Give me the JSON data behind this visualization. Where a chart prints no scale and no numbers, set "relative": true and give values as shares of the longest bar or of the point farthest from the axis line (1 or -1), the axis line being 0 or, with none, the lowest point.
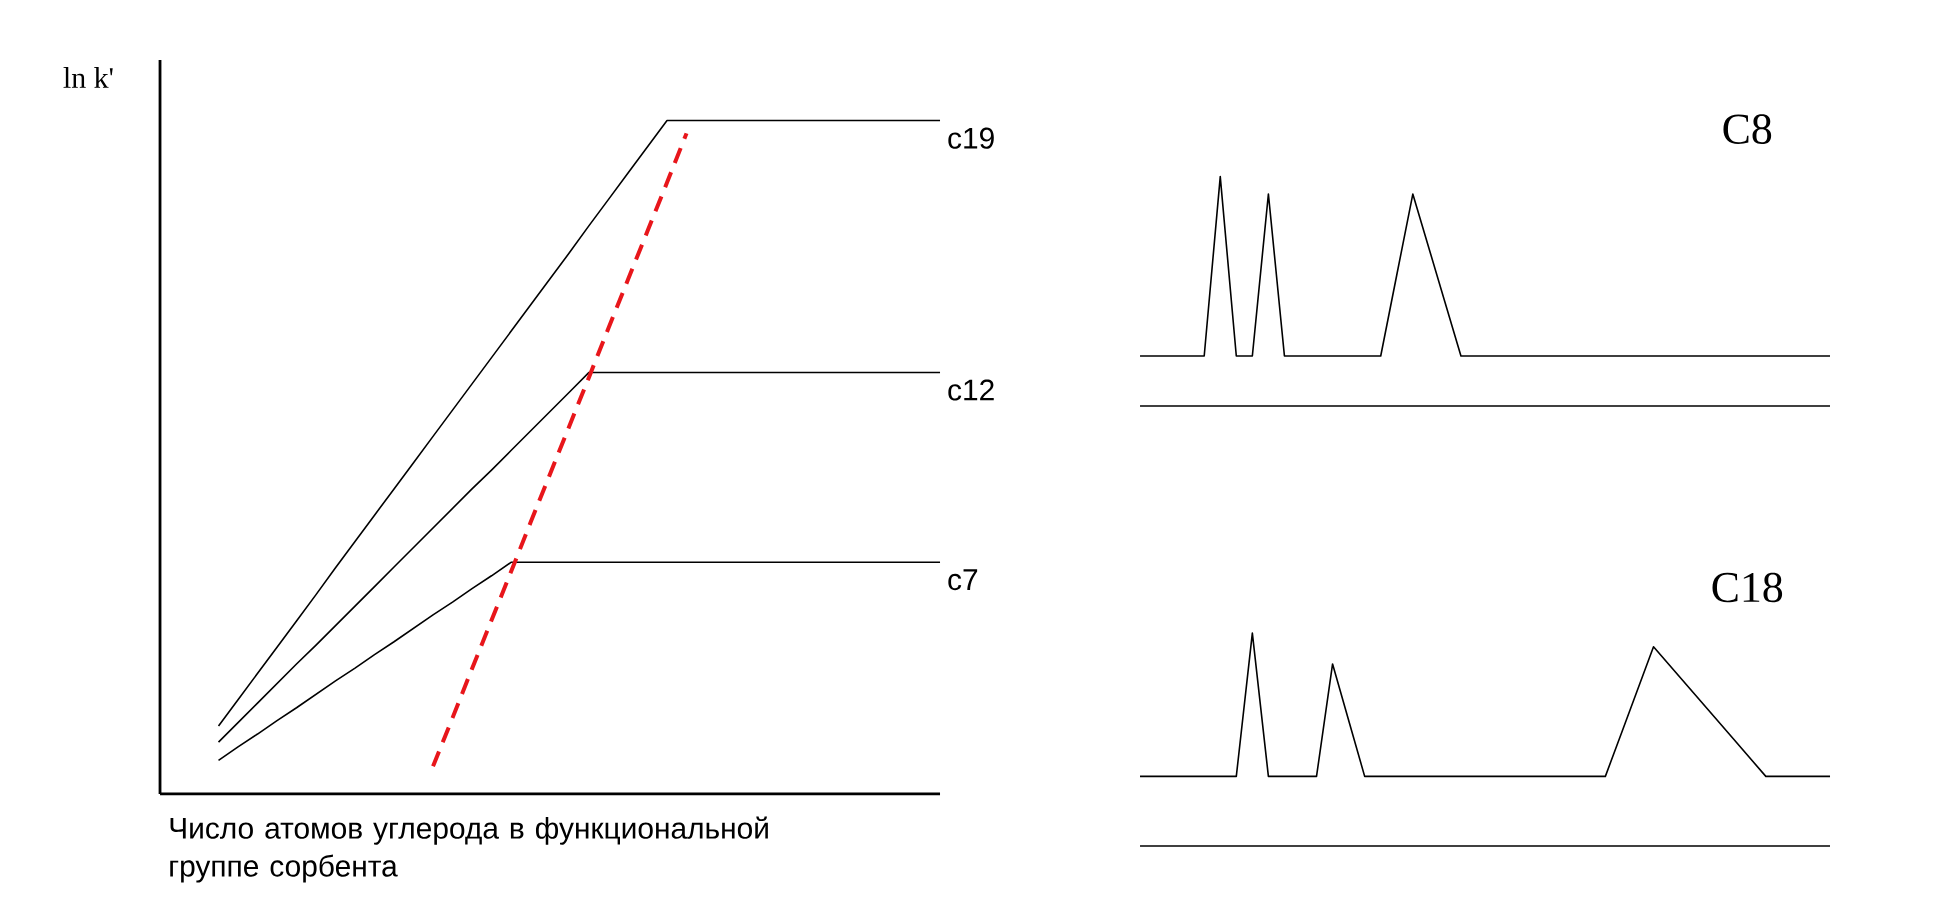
{
  "chart_data": [
    {
      "type": "line",
      "relative": true,
      "ylabel": "ln k'",
      "xlabel": "Число атомов углерода в функциональной группе сорбента",
      "tick_labels": false,
      "line_style": "solid",
      "categories": [
        null,
        null,
        null,
        null,
        null,
        null,
        null,
        null,
        null,
        null,
        null,
        null,
        null,
        null,
        null,
        null,
        null,
        null,
        null,
        null,
        null,
        null,
        null,
        null,
        null,
        null,
        null,
        null,
        null,
        null,
        null,
        null,
        null,
        null,
        null,
        null,
        null,
        null,
        null,
        null,
        null
      ],
      "series": [
        {
          "name": "c19",
          "color": "#000000",
          "values": [
            null,
            null,
            null,
            0.101,
            0.14,
            0.179,
            0.218,
            0.257,
            0.296,
            0.336,
            0.375,
            0.414,
            0.453,
            0.492,
            0.531,
            0.57,
            0.609,
            0.648,
            0.687,
            0.726,
            0.765,
            0.804,
            0.844,
            0.883,
            0.922,
            0.961,
            1,
            1,
            1,
            1,
            1,
            1,
            1,
            1,
            1,
            1,
            1,
            1,
            1,
            1,
            1
          ]
        },
        {
          "name": "c12",
          "color": "#000000",
          "values": [
            null,
            null,
            null,
            0.077,
            0.106,
            0.135,
            0.164,
            0.193,
            0.221,
            0.25,
            0.279,
            0.308,
            0.337,
            0.366,
            0.395,
            0.424,
            0.453,
            0.481,
            0.51,
            0.539,
            0.568,
            0.597,
            0.626,
            0.626,
            0.626,
            0.626,
            0.626,
            0.626,
            0.626,
            0.626,
            0.626,
            0.626,
            0.626,
            0.626,
            0.626,
            0.626,
            0.626,
            0.626,
            0.626,
            0.626,
            0.626
          ]
        },
        {
          "name": "c7",
          "color": "#000000",
          "values": [
            null,
            null,
            null,
            0.05,
            0.07,
            0.089,
            0.109,
            0.128,
            0.148,
            0.168,
            0.187,
            0.207,
            0.226,
            0.246,
            0.266,
            0.285,
            0.305,
            0.324,
            0.344,
            0.344,
            0.344,
            0.344,
            0.344,
            0.344,
            0.344,
            0.344,
            0.344,
            0.344,
            0.344,
            0.344,
            0.344,
            0.344,
            0.344,
            0.344,
            0.344,
            0.344,
            0.344,
            0.344,
            0.344,
            0.344,
            0.344
          ]
        },
        {
          "color": "#e8161b",
          "line_style": "dashed",
          "values": [
            null,
            null,
            null,
            null,
            null,
            null,
            null,
            null,
            null,
            null,
            null,
            null,
            null,
            null,
            0.041,
            0.113,
            0.186,
            0.258,
            0.33,
            0.403,
            0.475,
            0.547,
            0.619,
            0.692,
            0.764,
            0.836,
            0.908,
            0.981,
            null,
            null,
            null,
            null,
            null,
            null,
            null,
            null,
            null,
            null,
            null,
            null,
            null
          ]
        }
      ]
    },
    {
      "type": "line",
      "relative": true,
      "title": "C8",
      "tick_labels": false,
      "line_style": "solid",
      "categories": [
        null,
        null,
        null,
        null,
        null,
        null,
        null,
        null,
        null,
        null,
        null,
        null,
        null,
        null,
        null,
        null,
        null,
        null,
        null,
        null,
        null,
        null,
        null,
        null,
        null,
        null,
        null,
        null,
        null,
        null,
        null,
        null,
        null,
        null,
        null,
        null,
        null,
        null,
        null,
        null,
        null,
        null,
        null,
        null
      ],
      "series": [
        {
          "color": "#000000",
          "values": [
            0.218,
            0.218,
            0.218,
            0.218,
            0.218,
            1,
            0.218,
            0.218,
            0.924,
            0.218,
            0.218,
            0.218,
            0.218,
            0.218,
            0.218,
            0.218,
            0.571,
            0.924,
            0.689,
            0.453,
            0.218,
            0.218,
            0.218,
            0.218,
            0.218,
            0.218,
            0.218,
            0.218,
            0.218,
            0.218,
            0.218,
            0.218,
            0.218,
            0.218,
            0.218,
            0.218,
            0.218,
            0.218,
            0.218,
            0.218,
            0.218,
            0.218,
            0.218,
            0.218
          ]
        }
      ]
    },
    {
      "type": "line",
      "relative": true,
      "title": "C18",
      "tick_labels": false,
      "line_style": "solid",
      "categories": [
        null,
        null,
        null,
        null,
        null,
        null,
        null,
        null,
        null,
        null,
        null,
        null,
        null,
        null,
        null,
        null,
        null,
        null,
        null,
        null,
        null,
        null,
        null,
        null,
        null,
        null,
        null,
        null,
        null,
        null,
        null,
        null,
        null,
        null,
        null,
        null,
        null,
        null,
        null,
        null,
        null,
        null,
        null,
        null
      ],
      "series": [
        {
          "color": "#000000",
          "values": [
            0.327,
            0.327,
            0.327,
            0.327,
            0.327,
            0.327,
            0.327,
            1,
            0.327,
            0.327,
            0.327,
            0.327,
            0.855,
            0.591,
            0.327,
            0.327,
            0.327,
            0.327,
            0.327,
            0.327,
            0.327,
            0.327,
            0.327,
            0.327,
            0.327,
            0.327,
            0.327,
            0.327,
            0.327,
            0.327,
            0.53,
            0.733,
            0.936,
            0.849,
            0.762,
            0.675,
            0.588,
            0.501,
            0.414,
            0.327,
            0.327,
            0.327,
            0.327,
            0.327
          ]
        }
      ]
    }
  ]
}
